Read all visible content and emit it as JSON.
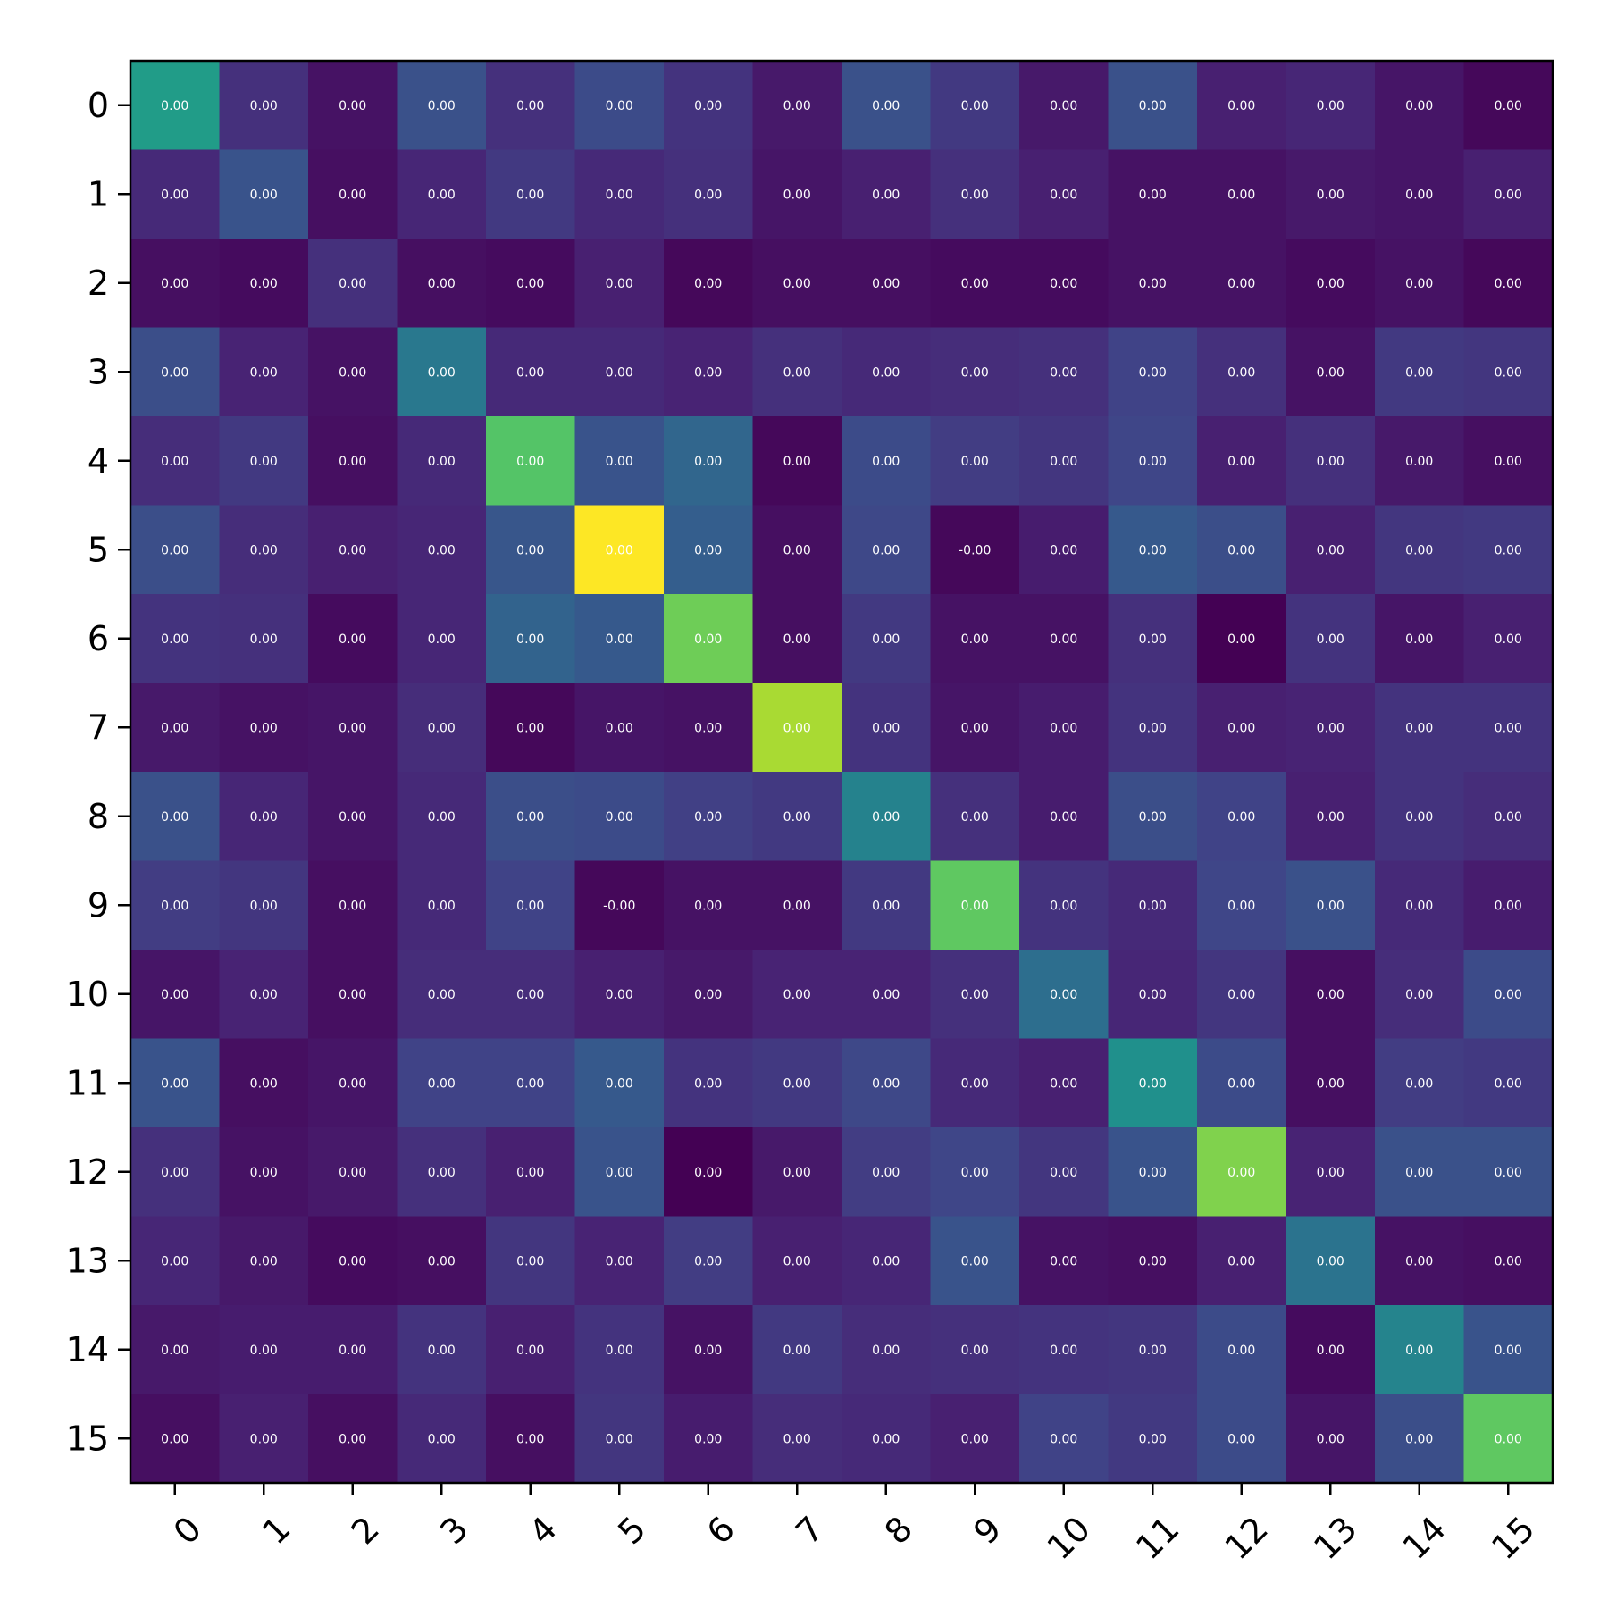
{
  "chart_data": {
    "type": "heatmap",
    "title": "",
    "xlabel": "",
    "ylabel": "",
    "colormap": "viridis",
    "x_ticks": [
      "0",
      "1",
      "2",
      "3",
      "4",
      "5",
      "6",
      "7",
      "8",
      "9",
      "10",
      "11",
      "12",
      "13",
      "14",
      "15"
    ],
    "y_ticks": [
      "0",
      "1",
      "2",
      "3",
      "4",
      "5",
      "6",
      "7",
      "8",
      "9",
      "10",
      "11",
      "12",
      "13",
      "14",
      "15"
    ],
    "cell_text_color": "#ffffff",
    "matrix": [
      [
        0.55,
        0.14,
        0.05,
        0.25,
        0.14,
        0.23,
        0.15,
        0.07,
        0.25,
        0.17,
        0.07,
        0.25,
        0.09,
        0.11,
        0.06,
        0.02
      ],
      [
        0.12,
        0.26,
        0.04,
        0.11,
        0.17,
        0.12,
        0.14,
        0.06,
        0.09,
        0.14,
        0.09,
        0.05,
        0.05,
        0.07,
        0.06,
        0.09
      ],
      [
        0.04,
        0.03,
        0.14,
        0.04,
        0.03,
        0.09,
        0.02,
        0.04,
        0.04,
        0.03,
        0.03,
        0.05,
        0.05,
        0.03,
        0.05,
        0.02
      ],
      [
        0.24,
        0.1,
        0.05,
        0.4,
        0.12,
        0.12,
        0.1,
        0.14,
        0.12,
        0.13,
        0.14,
        0.2,
        0.14,
        0.05,
        0.17,
        0.16
      ],
      [
        0.13,
        0.17,
        0.04,
        0.12,
        0.73,
        0.26,
        0.33,
        0.02,
        0.23,
        0.18,
        0.16,
        0.21,
        0.09,
        0.14,
        0.07,
        0.04
      ],
      [
        0.24,
        0.13,
        0.09,
        0.11,
        0.27,
        1.0,
        0.3,
        0.04,
        0.22,
        0.02,
        0.08,
        0.28,
        0.24,
        0.09,
        0.16,
        0.17
      ],
      [
        0.15,
        0.14,
        0.03,
        0.11,
        0.32,
        0.28,
        0.78,
        0.04,
        0.17,
        0.05,
        0.05,
        0.14,
        0.0,
        0.15,
        0.06,
        0.09
      ],
      [
        0.07,
        0.05,
        0.06,
        0.13,
        0.02,
        0.06,
        0.05,
        0.87,
        0.15,
        0.06,
        0.08,
        0.15,
        0.09,
        0.1,
        0.15,
        0.15
      ],
      [
        0.25,
        0.11,
        0.06,
        0.12,
        0.24,
        0.23,
        0.19,
        0.17,
        0.44,
        0.14,
        0.08,
        0.24,
        0.2,
        0.09,
        0.15,
        0.13
      ],
      [
        0.18,
        0.16,
        0.04,
        0.12,
        0.2,
        0.02,
        0.05,
        0.05,
        0.17,
        0.75,
        0.15,
        0.12,
        0.21,
        0.25,
        0.12,
        0.08
      ],
      [
        0.06,
        0.1,
        0.04,
        0.13,
        0.13,
        0.09,
        0.07,
        0.1,
        0.1,
        0.14,
        0.36,
        0.11,
        0.16,
        0.04,
        0.13,
        0.23
      ],
      [
        0.26,
        0.04,
        0.06,
        0.2,
        0.2,
        0.28,
        0.15,
        0.17,
        0.22,
        0.12,
        0.09,
        0.5,
        0.23,
        0.04,
        0.18,
        0.17
      ],
      [
        0.14,
        0.05,
        0.07,
        0.14,
        0.09,
        0.26,
        0.0,
        0.07,
        0.18,
        0.21,
        0.16,
        0.26,
        0.81,
        0.1,
        0.25,
        0.25
      ],
      [
        0.11,
        0.07,
        0.03,
        0.04,
        0.16,
        0.1,
        0.18,
        0.09,
        0.11,
        0.26,
        0.05,
        0.04,
        0.09,
        0.38,
        0.05,
        0.04
      ],
      [
        0.07,
        0.08,
        0.08,
        0.15,
        0.09,
        0.15,
        0.05,
        0.17,
        0.13,
        0.14,
        0.15,
        0.16,
        0.23,
        0.03,
        0.45,
        0.26
      ],
      [
        0.04,
        0.09,
        0.04,
        0.12,
        0.04,
        0.16,
        0.08,
        0.13,
        0.12,
        0.09,
        0.2,
        0.17,
        0.23,
        0.06,
        0.24,
        0.75
      ]
    ],
    "cell_labels": [
      [
        "0.00",
        "0.00",
        "0.00",
        "0.00",
        "0.00",
        "0.00",
        "0.00",
        "0.00",
        "0.00",
        "0.00",
        "0.00",
        "0.00",
        "0.00",
        "0.00",
        "0.00",
        "0.00"
      ],
      [
        "0.00",
        "0.00",
        "0.00",
        "0.00",
        "0.00",
        "0.00",
        "0.00",
        "0.00",
        "0.00",
        "0.00",
        "0.00",
        "0.00",
        "0.00",
        "0.00",
        "0.00",
        "0.00"
      ],
      [
        "0.00",
        "0.00",
        "0.00",
        "0.00",
        "0.00",
        "0.00",
        "0.00",
        "0.00",
        "0.00",
        "0.00",
        "0.00",
        "0.00",
        "0.00",
        "0.00",
        "0.00",
        "0.00"
      ],
      [
        "0.00",
        "0.00",
        "0.00",
        "0.00",
        "0.00",
        "0.00",
        "0.00",
        "0.00",
        "0.00",
        "0.00",
        "0.00",
        "0.00",
        "0.00",
        "0.00",
        "0.00",
        "0.00"
      ],
      [
        "0.00",
        "0.00",
        "0.00",
        "0.00",
        "0.00",
        "0.00",
        "0.00",
        "0.00",
        "0.00",
        "0.00",
        "0.00",
        "0.00",
        "0.00",
        "0.00",
        "0.00",
        "0.00"
      ],
      [
        "0.00",
        "0.00",
        "0.00",
        "0.00",
        "0.00",
        "0.00",
        "0.00",
        "0.00",
        "0.00",
        "-0.00",
        "0.00",
        "0.00",
        "0.00",
        "0.00",
        "0.00",
        "0.00"
      ],
      [
        "0.00",
        "0.00",
        "0.00",
        "0.00",
        "0.00",
        "0.00",
        "0.00",
        "0.00",
        "0.00",
        "0.00",
        "0.00",
        "0.00",
        "0.00",
        "0.00",
        "0.00",
        "0.00"
      ],
      [
        "0.00",
        "0.00",
        "0.00",
        "0.00",
        "0.00",
        "0.00",
        "0.00",
        "0.00",
        "0.00",
        "0.00",
        "0.00",
        "0.00",
        "0.00",
        "0.00",
        "0.00",
        "0.00"
      ],
      [
        "0.00",
        "0.00",
        "0.00",
        "0.00",
        "0.00",
        "0.00",
        "0.00",
        "0.00",
        "0.00",
        "0.00",
        "0.00",
        "0.00",
        "0.00",
        "0.00",
        "0.00",
        "0.00"
      ],
      [
        "0.00",
        "0.00",
        "0.00",
        "0.00",
        "0.00",
        "-0.00",
        "0.00",
        "0.00",
        "0.00",
        "0.00",
        "0.00",
        "0.00",
        "0.00",
        "0.00",
        "0.00",
        "0.00"
      ],
      [
        "0.00",
        "0.00",
        "0.00",
        "0.00",
        "0.00",
        "0.00",
        "0.00",
        "0.00",
        "0.00",
        "0.00",
        "0.00",
        "0.00",
        "0.00",
        "0.00",
        "0.00",
        "0.00"
      ],
      [
        "0.00",
        "0.00",
        "0.00",
        "0.00",
        "0.00",
        "0.00",
        "0.00",
        "0.00",
        "0.00",
        "0.00",
        "0.00",
        "0.00",
        "0.00",
        "0.00",
        "0.00",
        "0.00"
      ],
      [
        "0.00",
        "0.00",
        "0.00",
        "0.00",
        "0.00",
        "0.00",
        "0.00",
        "0.00",
        "0.00",
        "0.00",
        "0.00",
        "0.00",
        "0.00",
        "0.00",
        "0.00",
        "0.00"
      ],
      [
        "0.00",
        "0.00",
        "0.00",
        "0.00",
        "0.00",
        "0.00",
        "0.00",
        "0.00",
        "0.00",
        "0.00",
        "0.00",
        "0.00",
        "0.00",
        "0.00",
        "0.00",
        "0.00"
      ],
      [
        "0.00",
        "0.00",
        "0.00",
        "0.00",
        "0.00",
        "0.00",
        "0.00",
        "0.00",
        "0.00",
        "0.00",
        "0.00",
        "0.00",
        "0.00",
        "0.00",
        "0.00",
        "0.00"
      ],
      [
        "0.00",
        "0.00",
        "0.00",
        "0.00",
        "0.00",
        "0.00",
        "0.00",
        "0.00",
        "0.00",
        "0.00",
        "0.00",
        "0.00",
        "0.00",
        "0.00",
        "0.00",
        "0.00"
      ]
    ]
  }
}
